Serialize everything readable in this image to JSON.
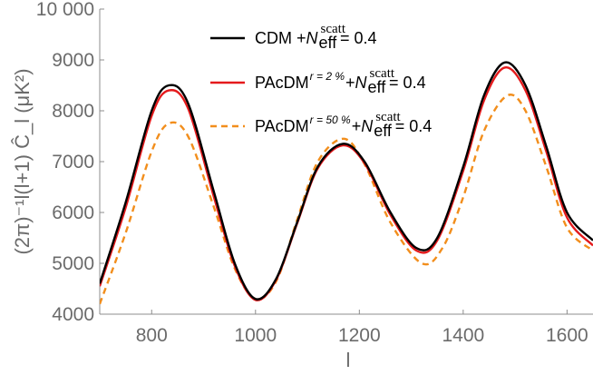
{
  "chart_data": {
    "type": "line",
    "xlabel": "l",
    "ylabel": "(2π)⁻¹l(l+1) Ĉ_l (μK²)",
    "xlim": [
      700,
      1650
    ],
    "ylim": [
      4000,
      10000
    ],
    "x_ticks": [
      800,
      1000,
      1200,
      1400,
      1600
    ],
    "y_ticks": [
      4000,
      5000,
      6000,
      7000,
      8000,
      9000,
      10000
    ],
    "y_tick_labels": [
      "4000",
      "5000",
      "6000",
      "7000",
      "8000",
      "9000",
      "10 000"
    ],
    "grid": false,
    "legend_position": "top-center",
    "series": [
      {
        "name": "CDM + N_eff^scatt = 0.4",
        "legend_main": "CDM + ",
        "legend_n": "N",
        "legend_sub": "eff",
        "legend_sup": "scatt",
        "legend_value": " = 0.4",
        "color": "#000000",
        "dash": false,
        "x": [
          700,
          750,
          800,
          833,
          870,
          920,
          960,
          1000,
          1040,
          1080,
          1120,
          1168,
          1210,
          1260,
          1310,
          1350,
          1400,
          1440,
          1480,
          1520,
          1560,
          1600,
          1650
        ],
        "y": [
          4600,
          6200,
          8000,
          8500,
          8150,
          6400,
          5000,
          4300,
          4700,
          5800,
          6900,
          7350,
          7000,
          6000,
          5300,
          5500,
          6900,
          8300,
          8950,
          8500,
          7300,
          6000,
          5450
        ]
      },
      {
        "name": "PAcDM^{r=2%} + N_eff^scatt = 0.4",
        "legend_main": "PAcDM",
        "legend_super": "r = 2 %",
        "legend_plus": " + ",
        "legend_n": "N",
        "legend_sub": "eff",
        "legend_sup": "scatt",
        "legend_value": " = 0.4",
        "color": "#e41a1c",
        "dash": false,
        "x": [
          700,
          750,
          800,
          833,
          870,
          920,
          960,
          1000,
          1040,
          1080,
          1120,
          1168,
          1210,
          1260,
          1310,
          1350,
          1400,
          1440,
          1480,
          1520,
          1560,
          1600,
          1650
        ],
        "y": [
          4550,
          6100,
          7900,
          8400,
          8050,
          6300,
          4950,
          4280,
          4680,
          5780,
          6870,
          7320,
          6970,
          5950,
          5250,
          5450,
          6820,
          8200,
          8850,
          8400,
          7200,
          5900,
          5350
        ]
      },
      {
        "name": "PAcDM^{r=50%} + N_eff^scatt = 0.4",
        "legend_main": "PAcDM",
        "legend_super": "r = 50 %",
        "legend_plus": " + ",
        "legend_n": "N",
        "legend_sub": "eff",
        "legend_sup": "scatt",
        "legend_value": " = 0.4",
        "color": "#f28e1c",
        "dash": true,
        "x": [
          700,
          750,
          800,
          833,
          870,
          920,
          960,
          1000,
          1040,
          1080,
          1120,
          1170,
          1210,
          1260,
          1320,
          1360,
          1400,
          1440,
          1485,
          1520,
          1560,
          1600,
          1650
        ],
        "y": [
          4200,
          5600,
          7200,
          7750,
          7500,
          6100,
          4900,
          4300,
          4650,
          5850,
          7000,
          7450,
          6950,
          5800,
          5000,
          5300,
          6300,
          7600,
          8300,
          8000,
          6900,
          5700,
          5250
        ]
      }
    ]
  }
}
